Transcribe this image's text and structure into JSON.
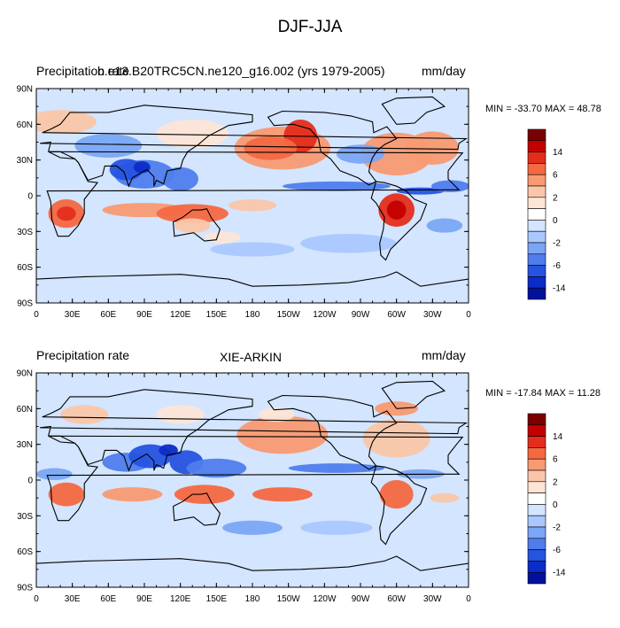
{
  "title": "DJF-JJA",
  "panels": [
    {
      "variable_label": "Precipitation rate",
      "case_label": "b.e13.B20TRC5CN.ne120_g16.002 (yrs 1979-2005)",
      "units_label": "mm/day",
      "minmax_label": "MIN = -33.70 MAX =  48.78",
      "colorbar_labels": [
        "14",
        "6",
        "2",
        "0",
        "-2",
        "-6",
        "-14"
      ]
    },
    {
      "variable_label": "Precipitation rate",
      "case_label": "XIE-ARKIN",
      "units_label": "mm/day",
      "minmax_label": "MIN = -17.84 MAX =  11.28",
      "colorbar_labels": [
        "14",
        "6",
        "2",
        "0",
        "-2",
        "-6",
        "-14"
      ]
    }
  ],
  "lat_labels": [
    "90N",
    "60N",
    "30N",
    "0",
    "30S",
    "60S",
    "90S"
  ],
  "lon_labels": [
    "0",
    "30E",
    "60E",
    "90E",
    "120E",
    "150E",
    "180",
    "150W",
    "120W",
    "90W",
    "60W",
    "30W",
    "0"
  ],
  "colors": {
    "ocean_base": "#d3e5ff",
    "scale": [
      "#7a0000",
      "#c40000",
      "#e42d1c",
      "#f46842",
      "#f89a72",
      "#fac6a9",
      "#fde5d6",
      "#ffffff",
      "#d3e5ff",
      "#aac8ff",
      "#7aa6f5",
      "#4f7ded",
      "#2653e0",
      "#0c2cc7",
      "#00129c"
    ]
  }
}
